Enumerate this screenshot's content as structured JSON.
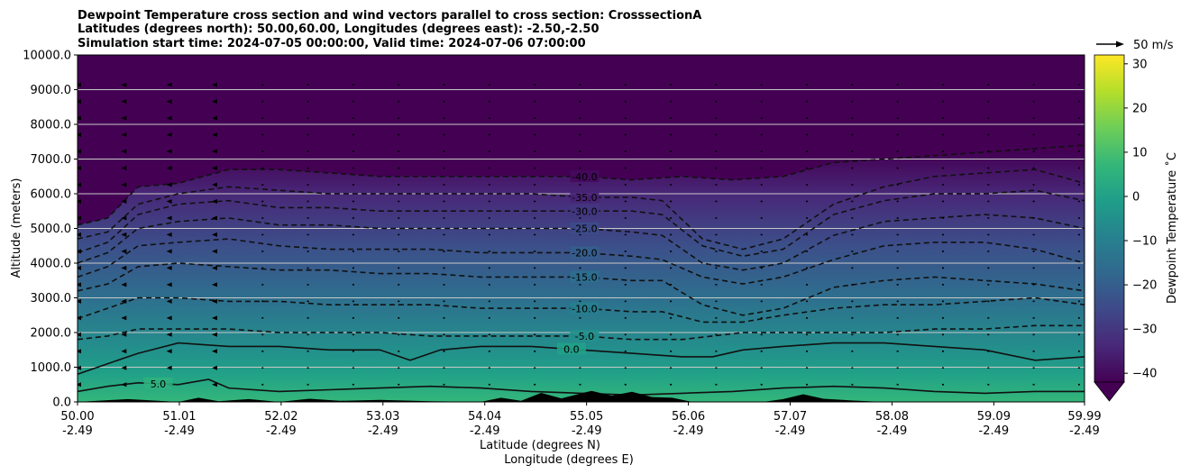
{
  "chart_data": {
    "type": "heatmap",
    "title_lines": [
      "Dewpoint Temperature cross section and wind vectors parallel to cross section: CrosssectionA",
      "Latitudes (degrees north): 50.00,60.00, Longitudes (degrees east): -2.50,-2.50",
      "Simulation start time: 2024-07-05 00:00:00, Valid time: 2024-07-06 07:00:00"
    ],
    "xlabel": "Latitude (degrees N)",
    "xlabel2": "Longitude (degrees E)",
    "ylabel": "Altitude (meters)",
    "xlim": [
      50.0,
      59.99
    ],
    "ylim": [
      0,
      10000
    ],
    "x_ticks": [
      {
        "lat": "50.00",
        "lon": "-2.49",
        "value": 50.0
      },
      {
        "lat": "51.01",
        "lon": "-2.49",
        "value": 51.01
      },
      {
        "lat": "52.02",
        "lon": "-2.49",
        "value": 52.02
      },
      {
        "lat": "53.03",
        "lon": "-2.49",
        "value": 53.03
      },
      {
        "lat": "54.04",
        "lon": "-2.49",
        "value": 54.04
      },
      {
        "lat": "55.05",
        "lon": "-2.49",
        "value": 55.05
      },
      {
        "lat": "56.06",
        "lon": "-2.49",
        "value": 56.06
      },
      {
        "lat": "57.07",
        "lon": "-2.49",
        "value": 57.07
      },
      {
        "lat": "58.08",
        "lon": "-2.49",
        "value": 58.08
      },
      {
        "lat": "59.09",
        "lon": "-2.49",
        "value": 59.09
      },
      {
        "lat": "59.99",
        "lon": "-2.49",
        "value": 59.99
      }
    ],
    "y_ticks": [
      {
        "label": "0.0",
        "value": 0
      },
      {
        "label": "1000.0",
        "value": 1000
      },
      {
        "label": "2000.0",
        "value": 2000
      },
      {
        "label": "3000.0",
        "value": 3000
      },
      {
        "label": "4000.0",
        "value": 4000
      },
      {
        "label": "5000.0",
        "value": 5000
      },
      {
        "label": "6000.0",
        "value": 6000
      },
      {
        "label": "7000.0",
        "value": 7000
      },
      {
        "label": "8000.0",
        "value": 8000
      },
      {
        "label": "9000.0",
        "value": 9000
      },
      {
        "label": "10000.0",
        "value": 10000
      }
    ],
    "grid": "horizontal",
    "colorbar": {
      "label": "Dewpoint Temperature $^\\circ$C",
      "label_display": "Dewpoint Temperature ˚C",
      "range": [
        -42,
        32
      ],
      "extend": "min",
      "colormap": "viridis",
      "ticks": [
        {
          "label": "30",
          "value": 30
        },
        {
          "label": "20",
          "value": 20
        },
        {
          "label": "10",
          "value": 10
        },
        {
          "label": "0",
          "value": 0
        },
        {
          "label": "−10",
          "value": -10
        },
        {
          "label": "−20",
          "value": -20
        },
        {
          "label": "−30",
          "value": -30
        },
        {
          "label": "−40",
          "value": -40
        }
      ],
      "colors": [
        "#440154",
        "#482878",
        "#3e4989",
        "#31688e",
        "#26828e",
        "#1f9e89",
        "#35b779",
        "#6ece58",
        "#b5de2b",
        "#fde725"
      ]
    },
    "quiver_key": {
      "label": "50 m/s"
    },
    "contour_levels": [
      {
        "value": -40,
        "label": "-40.0",
        "dashed": true,
        "profile": [
          [
            50.0,
            5100
          ],
          [
            50.3,
            5300
          ],
          [
            50.6,
            6200
          ],
          [
            51.0,
            6300
          ],
          [
            51.5,
            6700
          ],
          [
            52.0,
            6700
          ],
          [
            52.5,
            6600
          ],
          [
            53.0,
            6500
          ],
          [
            53.5,
            6500
          ],
          [
            54.0,
            6500
          ],
          [
            54.5,
            6500
          ],
          [
            55.0,
            6500
          ],
          [
            55.5,
            6400
          ],
          [
            56.0,
            6500
          ],
          [
            56.5,
            6400
          ],
          [
            57.0,
            6500
          ],
          [
            57.5,
            6900
          ],
          [
            58.0,
            7000
          ],
          [
            58.5,
            7100
          ],
          [
            59.0,
            7200
          ],
          [
            59.5,
            7300
          ],
          [
            59.99,
            7400
          ]
        ]
      },
      {
        "value": -35,
        "label": "-35.0",
        "dashed": true,
        "profile": [
          [
            50.0,
            4700
          ],
          [
            50.3,
            4900
          ],
          [
            50.6,
            5700
          ],
          [
            51.0,
            6000
          ],
          [
            51.5,
            6200
          ],
          [
            52.0,
            6100
          ],
          [
            52.5,
            6000
          ],
          [
            53.0,
            6000
          ],
          [
            53.5,
            6000
          ],
          [
            54.0,
            6000
          ],
          [
            54.5,
            6000
          ],
          [
            55.0,
            5900
          ],
          [
            55.5,
            5900
          ],
          [
            55.8,
            5800
          ],
          [
            56.2,
            4700
          ],
          [
            56.6,
            4400
          ],
          [
            57.0,
            4700
          ],
          [
            57.5,
            5700
          ],
          [
            58.0,
            6200
          ],
          [
            58.5,
            6500
          ],
          [
            59.0,
            6600
          ],
          [
            59.5,
            6700
          ],
          [
            59.99,
            6300
          ]
        ]
      },
      {
        "value": -30,
        "label": "-30.0",
        "dashed": true,
        "profile": [
          [
            50.0,
            4300
          ],
          [
            50.3,
            4600
          ],
          [
            50.6,
            5400
          ],
          [
            51.0,
            5700
          ],
          [
            51.5,
            5800
          ],
          [
            52.0,
            5600
          ],
          [
            52.5,
            5600
          ],
          [
            53.0,
            5500
          ],
          [
            53.5,
            5500
          ],
          [
            54.0,
            5500
          ],
          [
            54.5,
            5500
          ],
          [
            55.0,
            5500
          ],
          [
            55.5,
            5500
          ],
          [
            55.8,
            5400
          ],
          [
            56.2,
            4500
          ],
          [
            56.6,
            4200
          ],
          [
            57.0,
            4400
          ],
          [
            57.5,
            5400
          ],
          [
            58.0,
            5800
          ],
          [
            58.5,
            6000
          ],
          [
            59.0,
            6000
          ],
          [
            59.5,
            6100
          ],
          [
            59.99,
            5800
          ]
        ]
      },
      {
        "value": -25,
        "label": "-25.0",
        "dashed": true,
        "profile": [
          [
            50.0,
            4000
          ],
          [
            50.3,
            4300
          ],
          [
            50.6,
            5000
          ],
          [
            51.0,
            5200
          ],
          [
            51.5,
            5300
          ],
          [
            52.0,
            5100
          ],
          [
            52.5,
            5100
          ],
          [
            53.0,
            5000
          ],
          [
            53.5,
            5000
          ],
          [
            54.0,
            5000
          ],
          [
            54.5,
            5000
          ],
          [
            55.0,
            5000
          ],
          [
            55.5,
            4900
          ],
          [
            55.8,
            4800
          ],
          [
            56.2,
            4000
          ],
          [
            56.6,
            3800
          ],
          [
            57.0,
            4000
          ],
          [
            57.5,
            4800
          ],
          [
            58.0,
            5200
          ],
          [
            58.5,
            5300
          ],
          [
            59.0,
            5400
          ],
          [
            59.5,
            5300
          ],
          [
            59.99,
            5000
          ]
        ]
      },
      {
        "value": -20,
        "label": "-20.0",
        "dashed": true,
        "profile": [
          [
            50.0,
            3600
          ],
          [
            50.3,
            3900
          ],
          [
            50.6,
            4500
          ],
          [
            51.0,
            4600
          ],
          [
            51.5,
            4700
          ],
          [
            52.0,
            4500
          ],
          [
            52.5,
            4400
          ],
          [
            53.0,
            4400
          ],
          [
            53.5,
            4400
          ],
          [
            54.0,
            4300
          ],
          [
            54.5,
            4300
          ],
          [
            55.0,
            4300
          ],
          [
            55.5,
            4200
          ],
          [
            55.8,
            4100
          ],
          [
            56.2,
            3600
          ],
          [
            56.6,
            3400
          ],
          [
            57.0,
            3600
          ],
          [
            57.5,
            4100
          ],
          [
            58.0,
            4500
          ],
          [
            58.5,
            4600
          ],
          [
            59.0,
            4600
          ],
          [
            59.5,
            4400
          ],
          [
            59.99,
            4000
          ]
        ]
      },
      {
        "value": -15,
        "label": "-15.0",
        "dashed": true,
        "profile": [
          [
            50.0,
            3200
          ],
          [
            50.3,
            3400
          ],
          [
            50.6,
            3900
          ],
          [
            51.0,
            4000
          ],
          [
            51.5,
            3900
          ],
          [
            52.0,
            3800
          ],
          [
            52.5,
            3800
          ],
          [
            53.0,
            3700
          ],
          [
            53.5,
            3700
          ],
          [
            54.0,
            3600
          ],
          [
            54.5,
            3600
          ],
          [
            55.0,
            3600
          ],
          [
            55.5,
            3500
          ],
          [
            55.8,
            3500
          ],
          [
            56.2,
            2800
          ],
          [
            56.6,
            2500
          ],
          [
            57.0,
            2700
          ],
          [
            57.5,
            3300
          ],
          [
            58.0,
            3500
          ],
          [
            58.5,
            3600
          ],
          [
            59.0,
            3500
          ],
          [
            59.5,
            3400
          ],
          [
            59.99,
            3200
          ]
        ]
      },
      {
        "value": -10,
        "label": "-10.0",
        "dashed": true,
        "profile": [
          [
            50.0,
            2400
          ],
          [
            50.3,
            2700
          ],
          [
            50.6,
            3000
          ],
          [
            51.0,
            3000
          ],
          [
            51.5,
            2900
          ],
          [
            52.0,
            2900
          ],
          [
            52.5,
            2800
          ],
          [
            53.0,
            2800
          ],
          [
            53.5,
            2800
          ],
          [
            54.0,
            2700
          ],
          [
            54.5,
            2700
          ],
          [
            55.0,
            2700
          ],
          [
            55.5,
            2600
          ],
          [
            55.8,
            2600
          ],
          [
            56.2,
            2300
          ],
          [
            56.6,
            2300
          ],
          [
            57.0,
            2500
          ],
          [
            57.5,
            2700
          ],
          [
            58.0,
            2800
          ],
          [
            58.5,
            2800
          ],
          [
            59.0,
            2900
          ],
          [
            59.5,
            3000
          ],
          [
            59.99,
            2800
          ]
        ]
      },
      {
        "value": -5,
        "label": "-5.0",
        "dashed": true,
        "profile": [
          [
            50.0,
            1800
          ],
          [
            50.3,
            1900
          ],
          [
            50.6,
            2100
          ],
          [
            51.0,
            2100
          ],
          [
            51.5,
            2100
          ],
          [
            52.0,
            2000
          ],
          [
            52.5,
            2000
          ],
          [
            53.0,
            2000
          ],
          [
            53.5,
            1900
          ],
          [
            54.0,
            1900
          ],
          [
            54.5,
            1900
          ],
          [
            55.0,
            1900
          ],
          [
            55.5,
            1800
          ],
          [
            55.8,
            1800
          ],
          [
            56.0,
            1800
          ],
          [
            56.3,
            1900
          ],
          [
            56.6,
            2000
          ],
          [
            57.0,
            2000
          ],
          [
            57.5,
            2000
          ],
          [
            58.0,
            2000
          ],
          [
            58.5,
            2100
          ],
          [
            59.0,
            2100
          ],
          [
            59.5,
            2200
          ],
          [
            59.99,
            2200
          ]
        ]
      },
      {
        "value": 0,
        "label": "0.0",
        "dashed": false,
        "profile": [
          [
            50.0,
            800
          ],
          [
            50.3,
            1100
          ],
          [
            50.6,
            1400
          ],
          [
            51.0,
            1700
          ],
          [
            51.5,
            1600
          ],
          [
            52.0,
            1600
          ],
          [
            52.5,
            1500
          ],
          [
            53.0,
            1500
          ],
          [
            53.3,
            1200
          ],
          [
            53.6,
            1500
          ],
          [
            54.0,
            1600
          ],
          [
            54.5,
            1600
          ],
          [
            55.0,
            1500
          ],
          [
            55.5,
            1400
          ],
          [
            56.0,
            1300
          ],
          [
            56.3,
            1300
          ],
          [
            56.6,
            1500
          ],
          [
            57.0,
            1600
          ],
          [
            57.5,
            1700
          ],
          [
            58.0,
            1700
          ],
          [
            58.5,
            1600
          ],
          [
            59.0,
            1500
          ],
          [
            59.5,
            1200
          ],
          [
            59.99,
            1300
          ]
        ]
      },
      {
        "value": 5,
        "label": "5.0",
        "dashed": false,
        "profile": [
          [
            50.0,
            300
          ],
          [
            50.3,
            450
          ],
          [
            50.6,
            550
          ],
          [
            51.0,
            500
          ],
          [
            51.3,
            650
          ],
          [
            51.5,
            400
          ],
          [
            52.0,
            300
          ],
          [
            52.5,
            350
          ],
          [
            53.0,
            400
          ],
          [
            53.5,
            450
          ],
          [
            54.0,
            400
          ],
          [
            54.5,
            300
          ],
          [
            55.0,
            250
          ],
          [
            55.5,
            200
          ],
          [
            56.0,
            250
          ],
          [
            56.5,
            300
          ],
          [
            57.0,
            400
          ],
          [
            57.5,
            450
          ],
          [
            58.0,
            400
          ],
          [
            58.5,
            300
          ],
          [
            59.0,
            250
          ],
          [
            59.5,
            300
          ],
          [
            59.99,
            300
          ]
        ]
      }
    ],
    "terrain": [
      [
        50.0,
        0
      ],
      [
        50.5,
        80
      ],
      [
        51.0,
        0
      ],
      [
        51.2,
        120
      ],
      [
        51.4,
        20
      ],
      [
        51.7,
        80
      ],
      [
        52.0,
        0
      ],
      [
        52.3,
        90
      ],
      [
        52.6,
        30
      ],
      [
        53.0,
        60
      ],
      [
        53.5,
        20
      ],
      [
        54.0,
        0
      ],
      [
        54.2,
        120
      ],
      [
        54.4,
        30
      ],
      [
        54.6,
        260
      ],
      [
        54.8,
        100
      ],
      [
        55.0,
        250
      ],
      [
        55.1,
        320
      ],
      [
        55.3,
        180
      ],
      [
        55.5,
        290
      ],
      [
        55.7,
        140
      ],
      [
        55.9,
        120
      ],
      [
        56.1,
        0
      ],
      [
        56.8,
        0
      ],
      [
        57.0,
        80
      ],
      [
        57.2,
        220
      ],
      [
        57.4,
        90
      ],
      [
        57.7,
        40
      ],
      [
        58.0,
        0
      ],
      [
        59.99,
        0
      ]
    ],
    "wind_vectors": {
      "direction": "along cross section, toward south",
      "columns_with_arrows": [
        50.0,
        50.4,
        50.9,
        51.4
      ]
    }
  }
}
